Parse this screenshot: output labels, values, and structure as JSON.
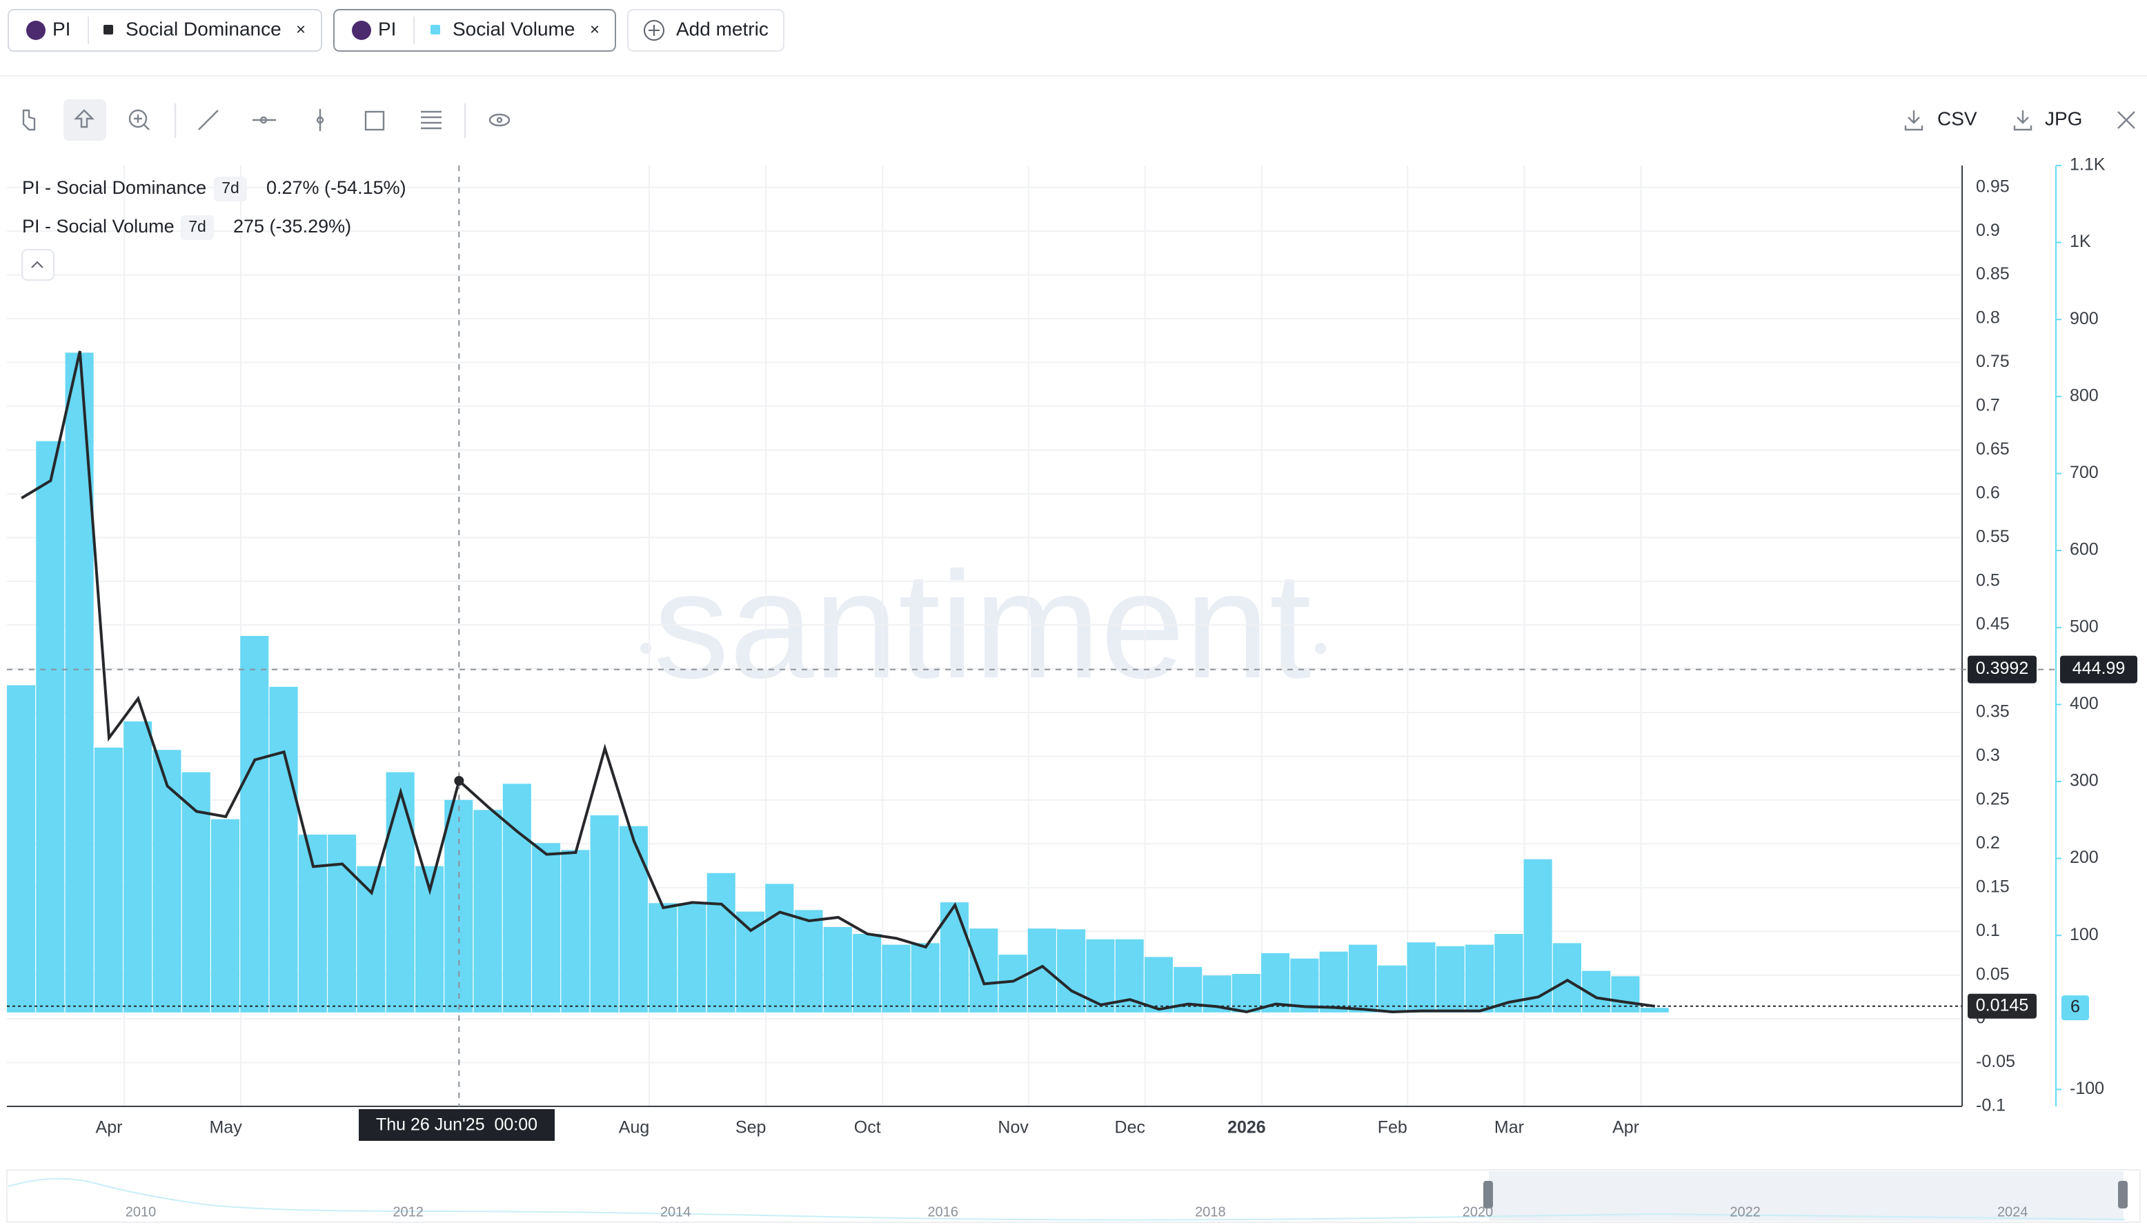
{
  "tabs": [
    {
      "asset": "PI",
      "metric": "Social Dominance"
    },
    {
      "asset": "PI",
      "metric": "Social Volume"
    }
  ],
  "add_metric": "Add metric",
  "toolbar": {
    "csv": "CSV",
    "jpg": "JPG"
  },
  "legend": [
    {
      "name": "PI - Social Dominance",
      "interval": "7d",
      "value": "0.27% (-54.15%)"
    },
    {
      "name": "PI - Social Volume",
      "interval": "7d",
      "value": "275 (-35.29%)"
    }
  ],
  "watermark": "santiment",
  "chart_data": {
    "type": "bar_line",
    "categories": [
      null,
      null,
      null,
      "Apr",
      null,
      null,
      null,
      "May",
      null,
      null,
      null,
      null,
      null,
      null,
      null,
      null,
      null,
      null,
      null,
      null,
      null,
      "Aug",
      null,
      null,
      null,
      "Sep",
      null,
      null,
      null,
      "Oct",
      null,
      null,
      null,
      null,
      "Nov",
      null,
      null,
      null,
      "Dec",
      null,
      null,
      null,
      "2026",
      null,
      null,
      null,
      null,
      "Feb",
      null,
      null,
      null,
      "Mar",
      null,
      null,
      null,
      "Apr",
      null
    ],
    "series": [
      {
        "name": "PI - Social Volume",
        "type": "bar",
        "axis": "y2",
        "color": "#68d8f4",
        "values": [
          425,
          742,
          857,
          344,
          378,
          341,
          312,
          251,
          489,
          423,
          231,
          231,
          190,
          312,
          190,
          276,
          263,
          297,
          220,
          211,
          256,
          242,
          142,
          142,
          181,
          131,
          167,
          133,
          111,
          102,
          88,
          90,
          143,
          109,
          75,
          109,
          108,
          95,
          95,
          72,
          59,
          48,
          50,
          77,
          70,
          79,
          88,
          61,
          91,
          86,
          88,
          102,
          199,
          90,
          54,
          47,
          6
        ]
      },
      {
        "name": "PI - Social Dominance",
        "type": "line",
        "axis": "y",
        "color": "#26282b",
        "values": [
          0.595,
          0.615,
          0.763,
          0.321,
          0.366,
          0.266,
          0.237,
          0.231,
          0.296,
          0.305,
          0.174,
          0.177,
          0.144,
          0.259,
          0.147,
          0.272,
          0.242,
          0.214,
          0.188,
          0.19,
          0.309,
          0.203,
          0.127,
          0.133,
          0.131,
          0.101,
          0.122,
          0.112,
          0.116,
          0.097,
          0.092,
          0.082,
          0.13,
          0.04,
          0.043,
          0.06,
          0.032,
          0.016,
          0.022,
          0.011,
          0.017,
          0.014,
          0.008,
          0.017,
          0.014,
          0.013,
          0.011,
          0.008,
          0.009,
          0.009,
          0.009,
          0.019,
          0.025,
          0.044,
          0.024,
          0.019,
          0.0145
        ]
      }
    ],
    "ylim": [
      -0.1,
      0.975
    ],
    "yticks": [
      -0.1,
      -0.05,
      0,
      0.05,
      0.1,
      0.15,
      0.2,
      0.25,
      0.3,
      0.35,
      0.4,
      0.45,
      0.5,
      0.55,
      0.6,
      0.65,
      0.7,
      0.75,
      0.8,
      0.85,
      0.9,
      0.95
    ],
    "y2lim": [
      -122,
      1100
    ],
    "y2ticks": [
      -100,
      100,
      200,
      300,
      400,
      500,
      600,
      700,
      800,
      900,
      {
        "value": 1000,
        "label": "1K"
      },
      {
        "value": 1100,
        "label": "1.1K"
      }
    ],
    "grid": true,
    "crosshair": {
      "date": "Thu 26 Jun'25  00:00",
      "y": 0.3992,
      "y2": 444.99
    }
  },
  "navigator": {
    "years": [
      "2010",
      "2012",
      "2014",
      "2016",
      "2018",
      "2020",
      "2022",
      "2024"
    ]
  }
}
